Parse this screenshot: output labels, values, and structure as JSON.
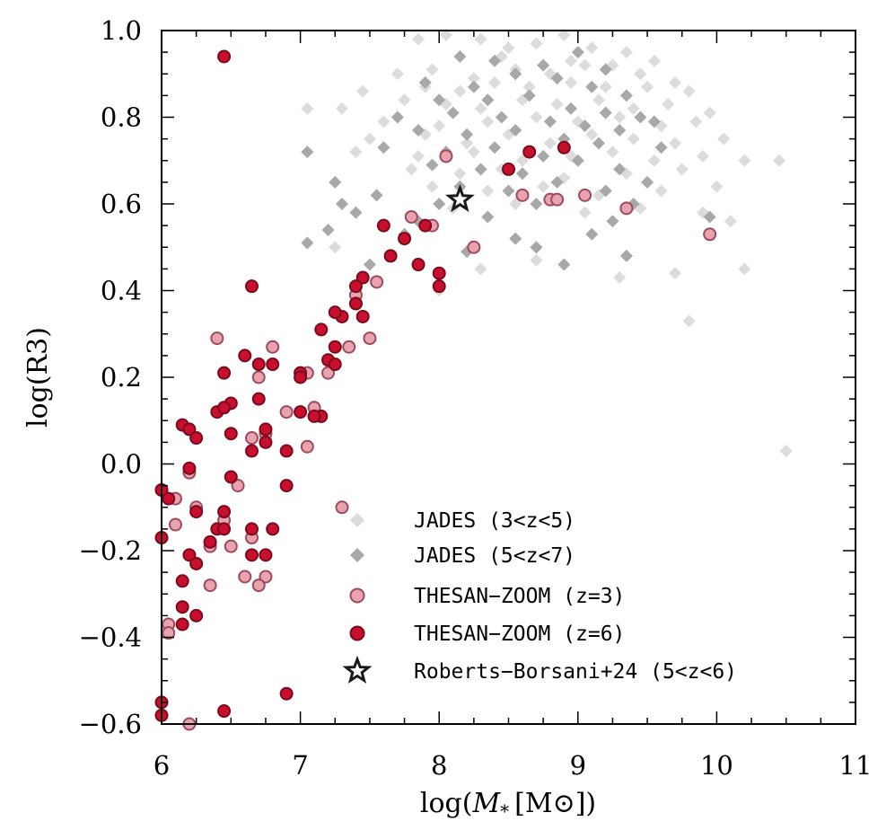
{
  "chart_data": {
    "type": "scatter",
    "xlabel": "log(M* [M⊙])",
    "xlabel_parts": {
      "prefix": "log(",
      "symbol": "M",
      "subscript": "*",
      "unit": "[M⊙])"
    },
    "ylabel": "log(R3)",
    "xlim": [
      6,
      11
    ],
    "ylim": [
      -0.6,
      1.0
    ],
    "x_ticks": [
      6,
      7,
      8,
      9,
      10,
      11
    ],
    "x_tick_labels": [
      "6",
      "7",
      "8",
      "9",
      "10",
      "11"
    ],
    "y_ticks": [
      -0.6,
      -0.4,
      -0.2,
      0.0,
      0.2,
      0.4,
      0.6,
      0.8,
      1.0
    ],
    "y_tick_labels": [
      "−0.6",
      "−0.4",
      "−0.2",
      "0.0",
      "0.2",
      "0.4",
      "0.6",
      "0.8",
      "1.0"
    ],
    "grid": false,
    "legend_position": "bottom-right",
    "series": [
      {
        "name": "JADES (3<z<5)",
        "marker": "diamond",
        "color": "#dcdcdc",
        "points": [
          [
            7.85,
            0.98
          ],
          [
            8.05,
            0.99
          ],
          [
            8.3,
            0.98
          ],
          [
            8.5,
            0.96
          ],
          [
            8.7,
            0.97
          ],
          [
            8.9,
            0.99
          ],
          [
            9.1,
            0.96
          ],
          [
            9.35,
            0.95
          ],
          [
            8.45,
            0.94
          ],
          [
            8.95,
            0.93
          ],
          [
            9.25,
            0.92
          ],
          [
            9.55,
            0.93
          ],
          [
            7.7,
            0.9
          ],
          [
            7.95,
            0.91
          ],
          [
            8.25,
            0.89
          ],
          [
            8.55,
            0.91
          ],
          [
            8.8,
            0.9
          ],
          [
            9.05,
            0.92
          ],
          [
            9.45,
            0.9
          ],
          [
            9.7,
            0.88
          ],
          [
            7.45,
            0.86
          ],
          [
            7.9,
            0.87
          ],
          [
            8.15,
            0.86
          ],
          [
            8.4,
            0.88
          ],
          [
            8.65,
            0.87
          ],
          [
            8.95,
            0.88
          ],
          [
            9.2,
            0.87
          ],
          [
            9.5,
            0.87
          ],
          [
            9.8,
            0.86
          ],
          [
            7.3,
            0.82
          ],
          [
            7.75,
            0.84
          ],
          [
            8.05,
            0.83
          ],
          [
            8.3,
            0.82
          ],
          [
            8.6,
            0.84
          ],
          [
            8.85,
            0.83
          ],
          [
            9.15,
            0.84
          ],
          [
            9.4,
            0.82
          ],
          [
            9.65,
            0.83
          ],
          [
            9.95,
            0.81
          ],
          [
            7.05,
            0.82
          ],
          [
            7.6,
            0.79
          ],
          [
            8.0,
            0.78
          ],
          [
            8.35,
            0.79
          ],
          [
            8.7,
            0.8
          ],
          [
            9.0,
            0.79
          ],
          [
            9.3,
            0.8
          ],
          [
            9.6,
            0.78
          ],
          [
            9.85,
            0.79
          ],
          [
            7.5,
            0.75
          ],
          [
            7.9,
            0.76
          ],
          [
            8.2,
            0.74
          ],
          [
            8.5,
            0.76
          ],
          [
            8.8,
            0.74
          ],
          [
            9.1,
            0.76
          ],
          [
            9.4,
            0.75
          ],
          [
            9.7,
            0.74
          ],
          [
            10.05,
            0.75
          ],
          [
            7.4,
            0.72
          ],
          [
            7.85,
            0.71
          ],
          [
            8.25,
            0.72
          ],
          [
            8.6,
            0.7
          ],
          [
            8.95,
            0.71
          ],
          [
            9.25,
            0.72
          ],
          [
            9.55,
            0.7
          ],
          [
            9.9,
            0.71
          ],
          [
            7.8,
            0.68
          ],
          [
            8.15,
            0.67
          ],
          [
            8.45,
            0.68
          ],
          [
            8.9,
            0.66
          ],
          [
            9.35,
            0.67
          ],
          [
            9.75,
            0.68
          ],
          [
            10.2,
            0.7
          ],
          [
            7.95,
            0.64
          ],
          [
            8.35,
            0.63
          ],
          [
            8.75,
            0.64
          ],
          [
            9.15,
            0.62
          ],
          [
            9.6,
            0.63
          ],
          [
            10.0,
            0.64
          ],
          [
            8.1,
            0.59
          ],
          [
            8.55,
            0.6
          ],
          [
            9.05,
            0.58
          ],
          [
            9.45,
            0.59
          ],
          [
            9.9,
            0.58
          ],
          [
            7.25,
            0.5
          ],
          [
            8.3,
            0.45
          ],
          [
            8.7,
            0.47
          ],
          [
            9.3,
            0.43
          ],
          [
            9.7,
            0.44
          ],
          [
            10.2,
            0.45
          ],
          [
            10.45,
            0.7
          ],
          [
            9.8,
            0.33
          ],
          [
            10.5,
            0.03
          ],
          [
            10.1,
            0.56
          ],
          [
            8.0,
            0.4
          ]
        ]
      },
      {
        "name": "JADES (5<z<7)",
        "marker": "diamond",
        "color": "#a8a8a8",
        "points": [
          [
            8.15,
            0.94
          ],
          [
            8.4,
            0.93
          ],
          [
            8.75,
            0.92
          ],
          [
            9.0,
            0.95
          ],
          [
            9.2,
            0.91
          ],
          [
            7.9,
            0.88
          ],
          [
            8.25,
            0.87
          ],
          [
            8.55,
            0.9
          ],
          [
            8.85,
            0.89
          ],
          [
            9.1,
            0.87
          ],
          [
            9.35,
            0.85
          ],
          [
            8.0,
            0.84
          ],
          [
            8.35,
            0.84
          ],
          [
            8.65,
            0.85
          ],
          [
            8.95,
            0.82
          ],
          [
            9.2,
            0.81
          ],
          [
            9.45,
            0.8
          ],
          [
            7.7,
            0.8
          ],
          [
            8.1,
            0.81
          ],
          [
            8.45,
            0.8
          ],
          [
            8.8,
            0.79
          ],
          [
            9.05,
            0.78
          ],
          [
            9.3,
            0.77
          ],
          [
            9.55,
            0.79
          ],
          [
            7.85,
            0.77
          ],
          [
            8.2,
            0.76
          ],
          [
            8.55,
            0.77
          ],
          [
            8.9,
            0.75
          ],
          [
            9.15,
            0.74
          ],
          [
            9.6,
            0.73
          ],
          [
            7.6,
            0.73
          ],
          [
            8.05,
            0.72
          ],
          [
            8.4,
            0.73
          ],
          [
            8.75,
            0.71
          ],
          [
            9.0,
            0.7
          ],
          [
            9.3,
            0.68
          ],
          [
            7.95,
            0.69
          ],
          [
            8.3,
            0.68
          ],
          [
            8.6,
            0.67
          ],
          [
            8.85,
            0.65
          ],
          [
            9.5,
            0.65
          ],
          [
            7.25,
            0.65
          ],
          [
            8.15,
            0.64
          ],
          [
            8.5,
            0.63
          ],
          [
            9.2,
            0.63
          ],
          [
            7.55,
            0.62
          ],
          [
            8.0,
            0.6
          ],
          [
            8.7,
            0.6
          ],
          [
            9.4,
            0.6
          ],
          [
            7.4,
            0.58
          ],
          [
            7.85,
            0.56
          ],
          [
            8.35,
            0.57
          ],
          [
            9.25,
            0.56
          ],
          [
            9.95,
            0.57
          ],
          [
            7.2,
            0.54
          ],
          [
            7.75,
            0.53
          ],
          [
            8.55,
            0.52
          ],
          [
            9.1,
            0.53
          ],
          [
            7.05,
            0.51
          ],
          [
            8.2,
            0.49
          ],
          [
            8.9,
            0.46
          ],
          [
            9.35,
            0.48
          ],
          [
            7.5,
            0.46
          ],
          [
            7.05,
            0.72
          ],
          [
            7.3,
            0.6
          ],
          [
            8.7,
            0.5
          ]
        ]
      },
      {
        "name": "THESAN-ZOOM (z=3)",
        "marker": "circle",
        "color": "#e8a3af",
        "edge": "#9e4a5e",
        "points": [
          [
            8.05,
            0.71
          ],
          [
            8.6,
            0.62
          ],
          [
            8.8,
            0.61
          ],
          [
            8.85,
            0.61
          ],
          [
            9.05,
            0.62
          ],
          [
            9.35,
            0.59
          ],
          [
            9.95,
            0.53
          ],
          [
            8.25,
            0.5
          ],
          [
            7.8,
            0.57
          ],
          [
            7.95,
            0.55
          ],
          [
            7.55,
            0.42
          ],
          [
            7.4,
            0.39
          ],
          [
            7.4,
            0.37
          ],
          [
            7.5,
            0.29
          ],
          [
            7.35,
            0.27
          ],
          [
            7.2,
            0.21
          ],
          [
            7.05,
            0.21
          ],
          [
            6.8,
            0.27
          ],
          [
            6.4,
            0.29
          ],
          [
            6.7,
            0.2
          ],
          [
            6.9,
            0.12
          ],
          [
            7.1,
            0.13
          ],
          [
            6.75,
            0.07
          ],
          [
            6.65,
            0.06
          ],
          [
            7.05,
            0.04
          ],
          [
            6.2,
            -0.02
          ],
          [
            6.55,
            -0.05
          ],
          [
            6.25,
            -0.1
          ],
          [
            6.45,
            -0.13
          ],
          [
            6.65,
            -0.17
          ],
          [
            6.1,
            -0.14
          ],
          [
            6.35,
            -0.19
          ],
          [
            6.5,
            -0.19
          ],
          [
            6.6,
            -0.26
          ],
          [
            6.75,
            -0.26
          ],
          [
            6.7,
            -0.28
          ],
          [
            6.35,
            -0.28
          ],
          [
            6.05,
            -0.37
          ],
          [
            6.05,
            -0.39
          ],
          [
            6.0,
            -0.06
          ],
          [
            6.1,
            -0.08
          ],
          [
            7.3,
            -0.1
          ],
          [
            6.2,
            -0.6
          ]
        ]
      },
      {
        "name": "THESAN-ZOOM (z=6)",
        "marker": "circle",
        "color": "#c8102e",
        "edge": "#7a0a1c",
        "points": [
          [
            6.45,
            0.94
          ],
          [
            8.9,
            0.73
          ],
          [
            8.65,
            0.72
          ],
          [
            8.5,
            0.68
          ],
          [
            7.9,
            0.55
          ],
          [
            7.6,
            0.55
          ],
          [
            7.75,
            0.52
          ],
          [
            7.65,
            0.48
          ],
          [
            7.85,
            0.46
          ],
          [
            8.0,
            0.44
          ],
          [
            8.0,
            0.41
          ],
          [
            7.45,
            0.43
          ],
          [
            7.4,
            0.41
          ],
          [
            7.4,
            0.37
          ],
          [
            7.45,
            0.34
          ],
          [
            7.3,
            0.34
          ],
          [
            7.25,
            0.35
          ],
          [
            7.15,
            0.31
          ],
          [
            6.65,
            0.41
          ],
          [
            7.25,
            0.27
          ],
          [
            7.2,
            0.24
          ],
          [
            7.25,
            0.23
          ],
          [
            7.0,
            0.21
          ],
          [
            7.0,
            0.2
          ],
          [
            6.6,
            0.25
          ],
          [
            6.7,
            0.23
          ],
          [
            6.8,
            0.23
          ],
          [
            6.45,
            0.21
          ],
          [
            6.5,
            0.14
          ],
          [
            6.4,
            0.12
          ],
          [
            6.45,
            0.13
          ],
          [
            6.7,
            0.15
          ],
          [
            7.0,
            0.12
          ],
          [
            7.15,
            0.11
          ],
          [
            7.1,
            0.11
          ],
          [
            6.15,
            0.09
          ],
          [
            6.2,
            0.08
          ],
          [
            6.25,
            0.06
          ],
          [
            6.5,
            0.07
          ],
          [
            6.75,
            0.08
          ],
          [
            6.75,
            0.05
          ],
          [
            6.65,
            0.03
          ],
          [
            6.9,
            0.03
          ],
          [
            6.2,
            -0.01
          ],
          [
            6.5,
            -0.03
          ],
          [
            6.0,
            -0.06
          ],
          [
            6.05,
            -0.08
          ],
          [
            6.25,
            -0.11
          ],
          [
            6.45,
            -0.11
          ],
          [
            6.9,
            -0.05
          ],
          [
            6.4,
            -0.15
          ],
          [
            6.45,
            -0.15
          ],
          [
            6.35,
            -0.18
          ],
          [
            6.65,
            -0.15
          ],
          [
            6.8,
            -0.15
          ],
          [
            6.0,
            -0.17
          ],
          [
            6.2,
            -0.21
          ],
          [
            6.25,
            -0.23
          ],
          [
            6.65,
            -0.21
          ],
          [
            6.75,
            -0.21
          ],
          [
            6.15,
            -0.27
          ],
          [
            6.15,
            -0.33
          ],
          [
            6.25,
            -0.35
          ],
          [
            6.15,
            -0.37
          ],
          [
            6.9,
            -0.53
          ],
          [
            6.45,
            -0.57
          ],
          [
            6.0,
            -0.55
          ],
          [
            6.0,
            -0.58
          ]
        ]
      },
      {
        "name": "Roberts-Borsani+24 (5<z<6)",
        "marker": "star",
        "color": "#ffffff",
        "edge": "#1a1a1a",
        "points": [
          [
            8.15,
            0.61
          ]
        ]
      }
    ],
    "legend_labels": [
      "JADES (3<z<5)",
      "JADES (5<z<7)",
      "THESAN−ZOOM (z=3)",
      "THESAN−ZOOM (z=6)",
      "Roberts−Borsani+24 (5<z<6)"
    ]
  }
}
